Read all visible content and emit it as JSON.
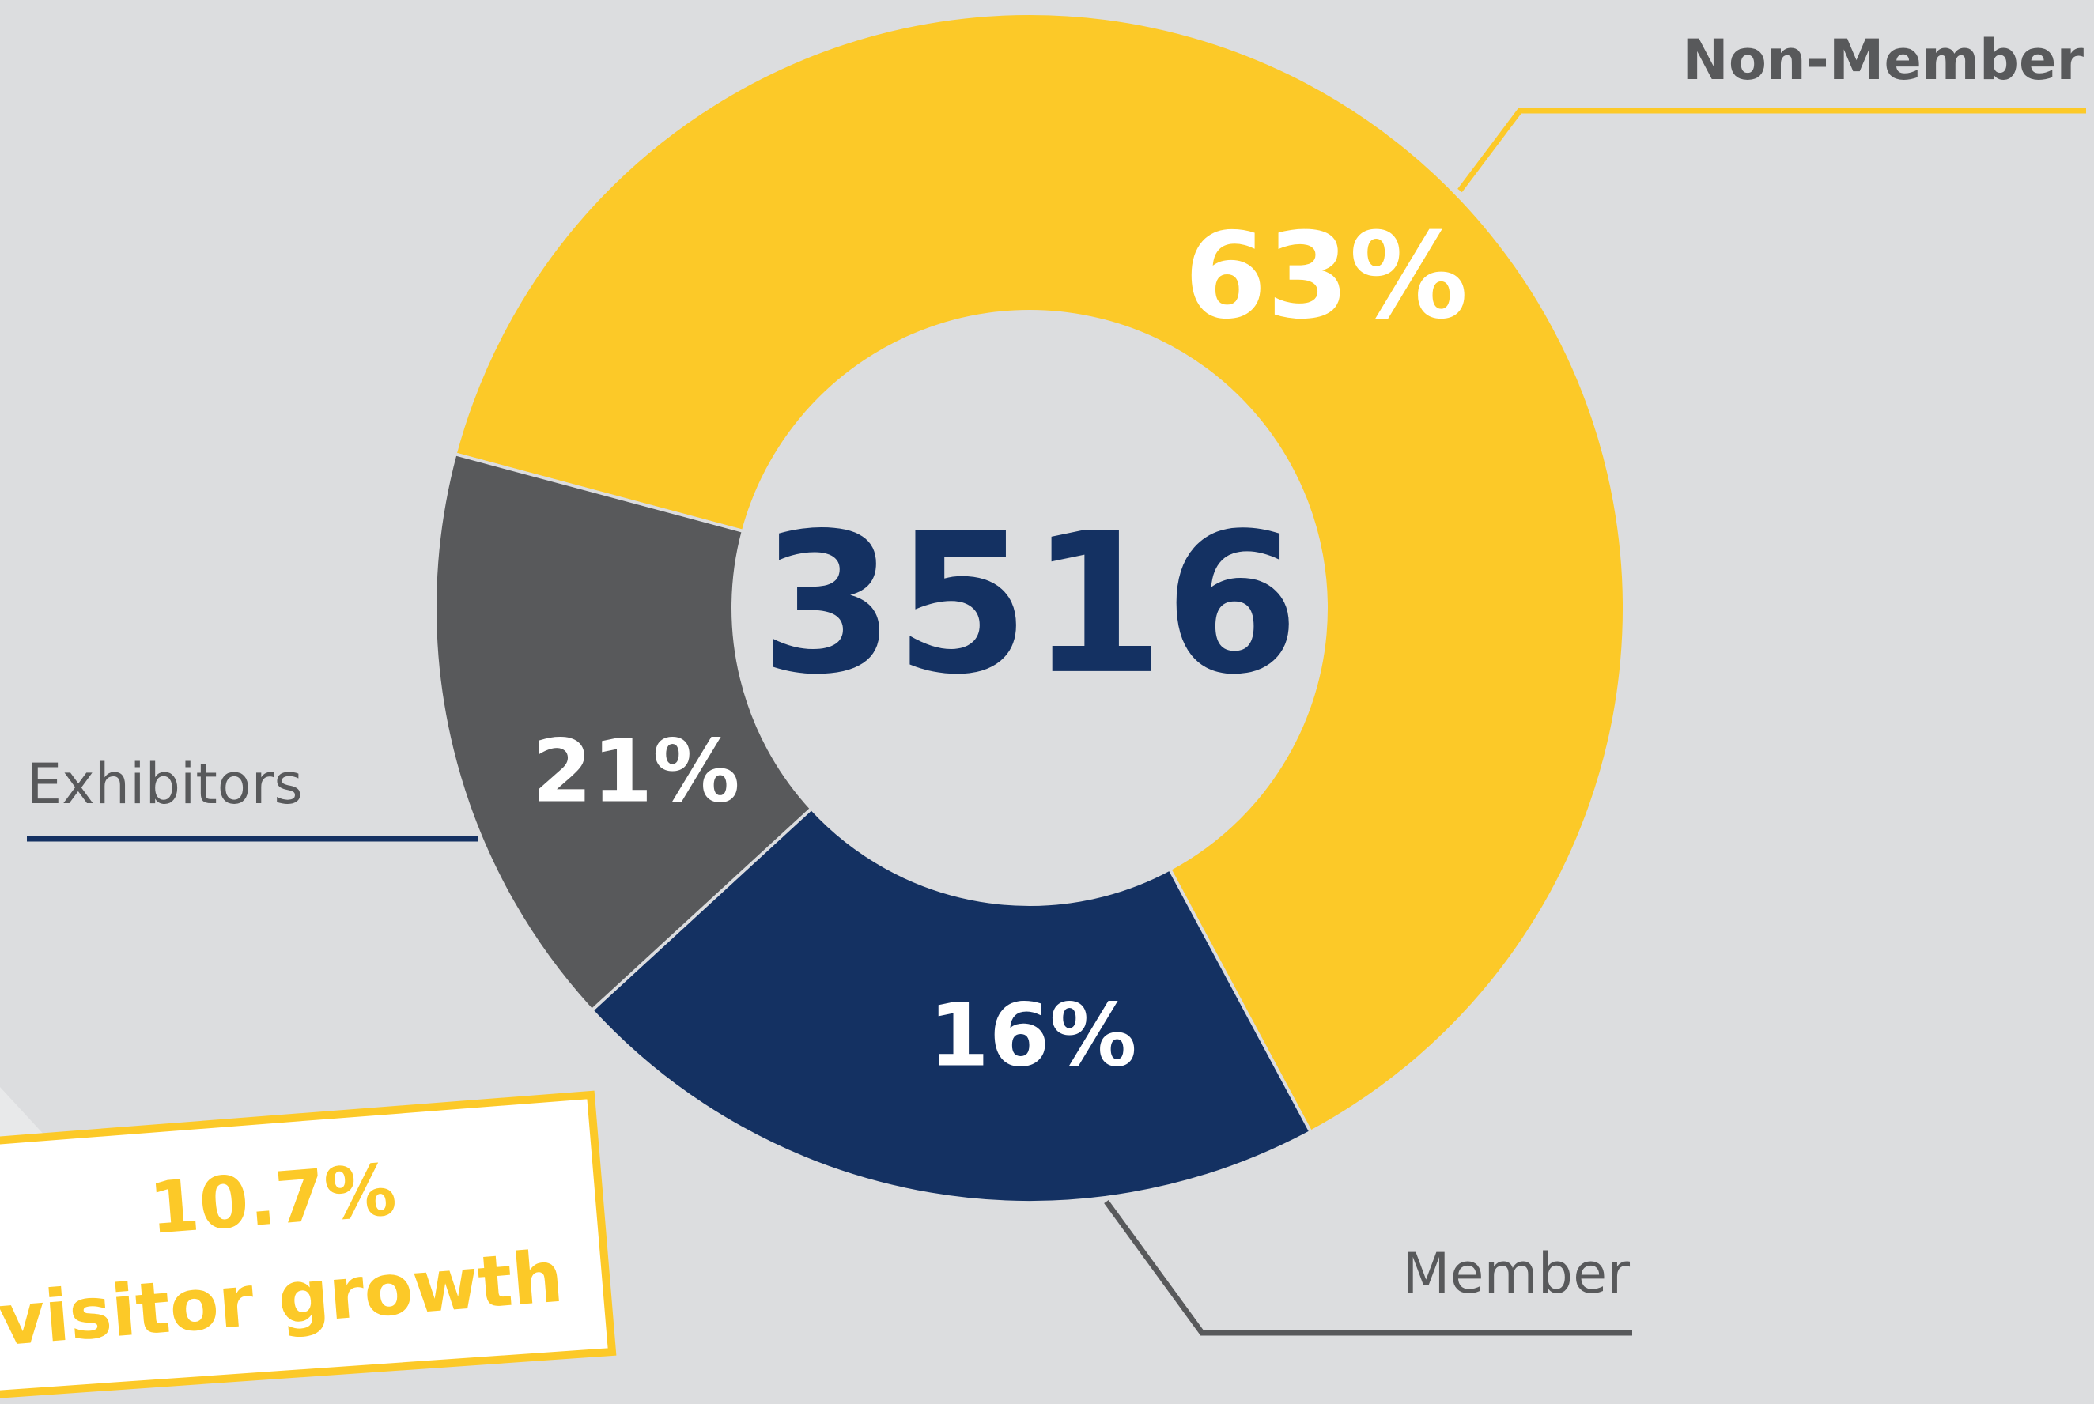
{
  "chart_data": {
    "type": "pie",
    "center_label": "3516",
    "categories": [
      "Non-Member",
      "Exhibitors",
      "Member"
    ],
    "values": [
      63,
      21,
      16
    ],
    "value_labels": [
      "63%",
      "21%",
      "16%"
    ],
    "colors": [
      "#fcc928",
      "#143162",
      "#58595b"
    ],
    "annotation": [
      "10.7%",
      "visitor growth"
    ]
  }
}
